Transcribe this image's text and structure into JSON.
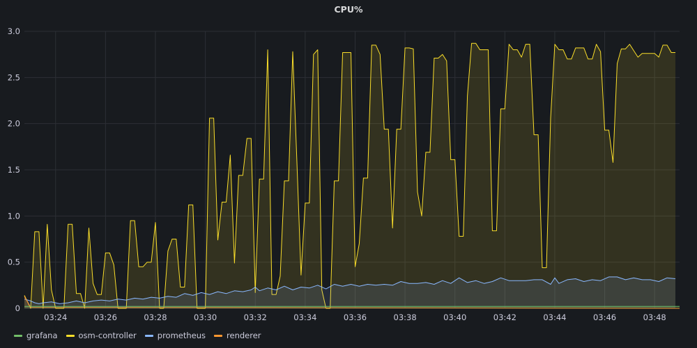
{
  "chart_data": {
    "type": "area",
    "title": "CPU%",
    "xlabel": "",
    "ylabel": "",
    "x_start": "03:22:45",
    "x_end": "03:49:00",
    "x_ticks": [
      "03:24",
      "03:26",
      "03:28",
      "03:30",
      "03:32",
      "03:34",
      "03:36",
      "03:38",
      "03:40",
      "03:42",
      "03:44",
      "03:46",
      "03:48"
    ],
    "y_ticks": [
      "0",
      "0.5",
      "1.0",
      "1.5",
      "2.0",
      "2.5",
      "3.0"
    ],
    "ylim": [
      0,
      3.0
    ],
    "grid": true,
    "legend_position": "bottom-left",
    "series": [
      {
        "name": "grafana",
        "color": "#73bf69",
        "points": [
          [
            "03:22:45",
            0.02
          ],
          [
            "03:49:00",
            0.02
          ]
        ]
      },
      {
        "name": "osm-controller",
        "color": "#fade2a",
        "points": [
          [
            "03:22:45",
            0.14
          ],
          [
            "03:23:00",
            0.0
          ],
          [
            "03:23:10",
            0.83
          ],
          [
            "03:23:20",
            0.83
          ],
          [
            "03:23:30",
            0.0
          ],
          [
            "03:23:40",
            0.91
          ],
          [
            "03:23:50",
            0.2
          ],
          [
            "03:24:00",
            0.0
          ],
          [
            "03:24:10",
            0.0
          ],
          [
            "03:24:20",
            0.0
          ],
          [
            "03:24:30",
            0.91
          ],
          [
            "03:24:40",
            0.91
          ],
          [
            "03:24:50",
            0.16
          ],
          [
            "03:25:00",
            0.16
          ],
          [
            "03:25:10",
            0.0
          ],
          [
            "03:25:20",
            0.87
          ],
          [
            "03:25:30",
            0.27
          ],
          [
            "03:25:40",
            0.15
          ],
          [
            "03:25:50",
            0.15
          ],
          [
            "03:26:00",
            0.6
          ],
          [
            "03:26:10",
            0.6
          ],
          [
            "03:26:20",
            0.47
          ],
          [
            "03:26:30",
            0.0
          ],
          [
            "03:26:40",
            0.0
          ],
          [
            "03:26:50",
            0.0
          ],
          [
            "03:27:00",
            0.95
          ],
          [
            "03:27:10",
            0.95
          ],
          [
            "03:27:20",
            0.45
          ],
          [
            "03:27:30",
            0.45
          ],
          [
            "03:27:40",
            0.5
          ],
          [
            "03:27:50",
            0.5
          ],
          [
            "03:28:00",
            0.93
          ],
          [
            "03:28:10",
            0.0
          ],
          [
            "03:28:20",
            0.0
          ],
          [
            "03:28:30",
            0.62
          ],
          [
            "03:28:40",
            0.75
          ],
          [
            "03:28:50",
            0.75
          ],
          [
            "03:29:00",
            0.23
          ],
          [
            "03:29:10",
            0.23
          ],
          [
            "03:29:20",
            1.12
          ],
          [
            "03:29:30",
            1.12
          ],
          [
            "03:29:40",
            0.0
          ],
          [
            "03:29:50",
            0.0
          ],
          [
            "03:30:00",
            0.0
          ],
          [
            "03:30:10",
            2.06
          ],
          [
            "03:30:20",
            2.06
          ],
          [
            "03:30:30",
            0.74
          ],
          [
            "03:30:40",
            1.15
          ],
          [
            "03:30:50",
            1.15
          ],
          [
            "03:31:00",
            1.66
          ],
          [
            "03:31:10",
            0.49
          ],
          [
            "03:31:20",
            1.44
          ],
          [
            "03:31:30",
            1.44
          ],
          [
            "03:31:40",
            1.84
          ],
          [
            "03:31:50",
            1.84
          ],
          [
            "03:32:00",
            0.17
          ],
          [
            "03:32:10",
            1.4
          ],
          [
            "03:32:20",
            1.4
          ],
          [
            "03:32:30",
            2.8
          ],
          [
            "03:32:40",
            0.15
          ],
          [
            "03:32:50",
            0.15
          ],
          [
            "03:33:00",
            0.35
          ],
          [
            "03:33:10",
            1.38
          ],
          [
            "03:33:20",
            1.38
          ],
          [
            "03:33:30",
            2.78
          ],
          [
            "03:33:40",
            1.6
          ],
          [
            "03:33:50",
            0.36
          ],
          [
            "03:34:00",
            1.14
          ],
          [
            "03:34:10",
            1.14
          ],
          [
            "03:34:20",
            2.75
          ],
          [
            "03:34:30",
            2.8
          ],
          [
            "03:34:40",
            0.2
          ],
          [
            "03:34:50",
            0.0
          ],
          [
            "03:35:00",
            0.0
          ],
          [
            "03:35:10",
            1.38
          ],
          [
            "03:35:20",
            1.38
          ],
          [
            "03:35:30",
            2.77
          ],
          [
            "03:35:40",
            2.77
          ],
          [
            "03:35:50",
            2.77
          ],
          [
            "03:36:00",
            0.45
          ],
          [
            "03:36:10",
            0.7
          ],
          [
            "03:36:20",
            1.41
          ],
          [
            "03:36:30",
            1.41
          ],
          [
            "03:36:40",
            2.85
          ],
          [
            "03:36:50",
            2.85
          ],
          [
            "03:37:00",
            2.75
          ],
          [
            "03:37:10",
            1.94
          ],
          [
            "03:37:20",
            1.94
          ],
          [
            "03:37:30",
            0.87
          ],
          [
            "03:37:40",
            1.94
          ],
          [
            "03:37:50",
            1.94
          ],
          [
            "03:38:00",
            2.82
          ],
          [
            "03:38:10",
            2.82
          ],
          [
            "03:38:20",
            2.81
          ],
          [
            "03:38:30",
            1.26
          ],
          [
            "03:38:40",
            1.0
          ],
          [
            "03:38:50",
            1.69
          ],
          [
            "03:39:00",
            1.69
          ],
          [
            "03:39:10",
            2.71
          ],
          [
            "03:39:20",
            2.71
          ],
          [
            "03:39:30",
            2.75
          ],
          [
            "03:39:40",
            2.68
          ],
          [
            "03:39:50",
            1.61
          ],
          [
            "03:40:00",
            1.61
          ],
          [
            "03:40:10",
            0.78
          ],
          [
            "03:40:20",
            0.78
          ],
          [
            "03:40:30",
            2.3
          ],
          [
            "03:40:40",
            2.87
          ],
          [
            "03:40:50",
            2.87
          ],
          [
            "03:41:00",
            2.8
          ],
          [
            "03:41:10",
            2.8
          ],
          [
            "03:41:20",
            2.8
          ],
          [
            "03:41:30",
            0.84
          ],
          [
            "03:41:40",
            0.84
          ],
          [
            "03:41:50",
            2.16
          ],
          [
            "03:42:00",
            2.16
          ],
          [
            "03:42:10",
            2.86
          ],
          [
            "03:42:20",
            2.8
          ],
          [
            "03:42:30",
            2.8
          ],
          [
            "03:42:40",
            2.72
          ],
          [
            "03:42:50",
            2.86
          ],
          [
            "03:43:00",
            2.86
          ],
          [
            "03:43:10",
            1.88
          ],
          [
            "03:43:20",
            1.88
          ],
          [
            "03:43:30",
            0.44
          ],
          [
            "03:43:40",
            0.44
          ],
          [
            "03:43:50",
            2.06
          ],
          [
            "03:44:00",
            2.86
          ],
          [
            "03:44:10",
            2.8
          ],
          [
            "03:44:20",
            2.8
          ],
          [
            "03:44:30",
            2.7
          ],
          [
            "03:44:40",
            2.7
          ],
          [
            "03:44:50",
            2.82
          ],
          [
            "03:45:00",
            2.82
          ],
          [
            "03:45:10",
            2.82
          ],
          [
            "03:45:20",
            2.7
          ],
          [
            "03:45:30",
            2.7
          ],
          [
            "03:45:40",
            2.86
          ],
          [
            "03:45:50",
            2.78
          ],
          [
            "03:46:00",
            1.93
          ],
          [
            "03:46:10",
            1.93
          ],
          [
            "03:46:20",
            1.58
          ],
          [
            "03:46:30",
            2.65
          ],
          [
            "03:46:40",
            2.81
          ],
          [
            "03:46:50",
            2.81
          ],
          [
            "03:47:00",
            2.86
          ],
          [
            "03:47:10",
            2.79
          ],
          [
            "03:47:20",
            2.72
          ],
          [
            "03:47:30",
            2.76
          ],
          [
            "03:47:40",
            2.76
          ],
          [
            "03:47:50",
            2.76
          ],
          [
            "03:48:00",
            2.76
          ],
          [
            "03:48:10",
            2.72
          ],
          [
            "03:48:20",
            2.85
          ],
          [
            "03:48:30",
            2.85
          ],
          [
            "03:48:40",
            2.77
          ],
          [
            "03:48:50",
            2.77
          ]
        ]
      },
      {
        "name": "prometheus",
        "color": "#8ab8ff",
        "points": [
          [
            "03:22:45",
            0.1
          ],
          [
            "03:23:00",
            0.08
          ],
          [
            "03:23:10",
            0.06
          ],
          [
            "03:23:20",
            0.05
          ],
          [
            "03:23:30",
            0.06
          ],
          [
            "03:23:50",
            0.07
          ],
          [
            "03:24:10",
            0.05
          ],
          [
            "03:24:30",
            0.06
          ],
          [
            "03:24:50",
            0.08
          ],
          [
            "03:25:10",
            0.06
          ],
          [
            "03:25:30",
            0.08
          ],
          [
            "03:25:50",
            0.09
          ],
          [
            "03:26:10",
            0.08
          ],
          [
            "03:26:30",
            0.1
          ],
          [
            "03:26:50",
            0.09
          ],
          [
            "03:27:10",
            0.11
          ],
          [
            "03:27:30",
            0.1
          ],
          [
            "03:27:50",
            0.12
          ],
          [
            "03:28:10",
            0.11
          ],
          [
            "03:28:30",
            0.13
          ],
          [
            "03:28:50",
            0.12
          ],
          [
            "03:29:10",
            0.16
          ],
          [
            "03:29:30",
            0.14
          ],
          [
            "03:29:50",
            0.17
          ],
          [
            "03:30:10",
            0.15
          ],
          [
            "03:30:30",
            0.18
          ],
          [
            "03:30:50",
            0.16
          ],
          [
            "03:31:10",
            0.19
          ],
          [
            "03:31:30",
            0.18
          ],
          [
            "03:31:50",
            0.2
          ],
          [
            "03:32:00",
            0.23
          ],
          [
            "03:32:10",
            0.19
          ],
          [
            "03:32:30",
            0.22
          ],
          [
            "03:32:50",
            0.2
          ],
          [
            "03:33:10",
            0.24
          ],
          [
            "03:33:30",
            0.2
          ],
          [
            "03:33:50",
            0.23
          ],
          [
            "03:34:10",
            0.22
          ],
          [
            "03:34:30",
            0.25
          ],
          [
            "03:34:50",
            0.21
          ],
          [
            "03:35:10",
            0.26
          ],
          [
            "03:35:30",
            0.24
          ],
          [
            "03:35:50",
            0.26
          ],
          [
            "03:36:10",
            0.24
          ],
          [
            "03:36:30",
            0.26
          ],
          [
            "03:36:50",
            0.25
          ],
          [
            "03:37:10",
            0.26
          ],
          [
            "03:37:30",
            0.25
          ],
          [
            "03:37:50",
            0.29
          ],
          [
            "03:38:10",
            0.27
          ],
          [
            "03:38:30",
            0.27
          ],
          [
            "03:38:50",
            0.28
          ],
          [
            "03:39:10",
            0.26
          ],
          [
            "03:39:30",
            0.3
          ],
          [
            "03:39:50",
            0.27
          ],
          [
            "03:40:10",
            0.33
          ],
          [
            "03:40:30",
            0.28
          ],
          [
            "03:40:50",
            0.3
          ],
          [
            "03:41:10",
            0.27
          ],
          [
            "03:41:30",
            0.29
          ],
          [
            "03:41:50",
            0.33
          ],
          [
            "03:42:10",
            0.3
          ],
          [
            "03:42:30",
            0.3
          ],
          [
            "03:42:50",
            0.3
          ],
          [
            "03:43:10",
            0.31
          ],
          [
            "03:43:30",
            0.31
          ],
          [
            "03:43:50",
            0.26
          ],
          [
            "03:44:00",
            0.33
          ],
          [
            "03:44:10",
            0.27
          ],
          [
            "03:44:30",
            0.31
          ],
          [
            "03:44:50",
            0.32
          ],
          [
            "03:45:10",
            0.29
          ],
          [
            "03:45:30",
            0.31
          ],
          [
            "03:45:50",
            0.3
          ],
          [
            "03:46:10",
            0.34
          ],
          [
            "03:46:30",
            0.34
          ],
          [
            "03:46:50",
            0.31
          ],
          [
            "03:47:10",
            0.33
          ],
          [
            "03:47:30",
            0.31
          ],
          [
            "03:47:50",
            0.31
          ],
          [
            "03:48:10",
            0.29
          ],
          [
            "03:48:30",
            0.33
          ],
          [
            "03:48:50",
            0.32
          ]
        ]
      },
      {
        "name": "renderer",
        "color": "#ff9830",
        "points": [
          [
            "03:22:45",
            0.13
          ],
          [
            "03:23:00",
            0.01
          ],
          [
            "03:49:00",
            0.0
          ]
        ]
      }
    ]
  }
}
